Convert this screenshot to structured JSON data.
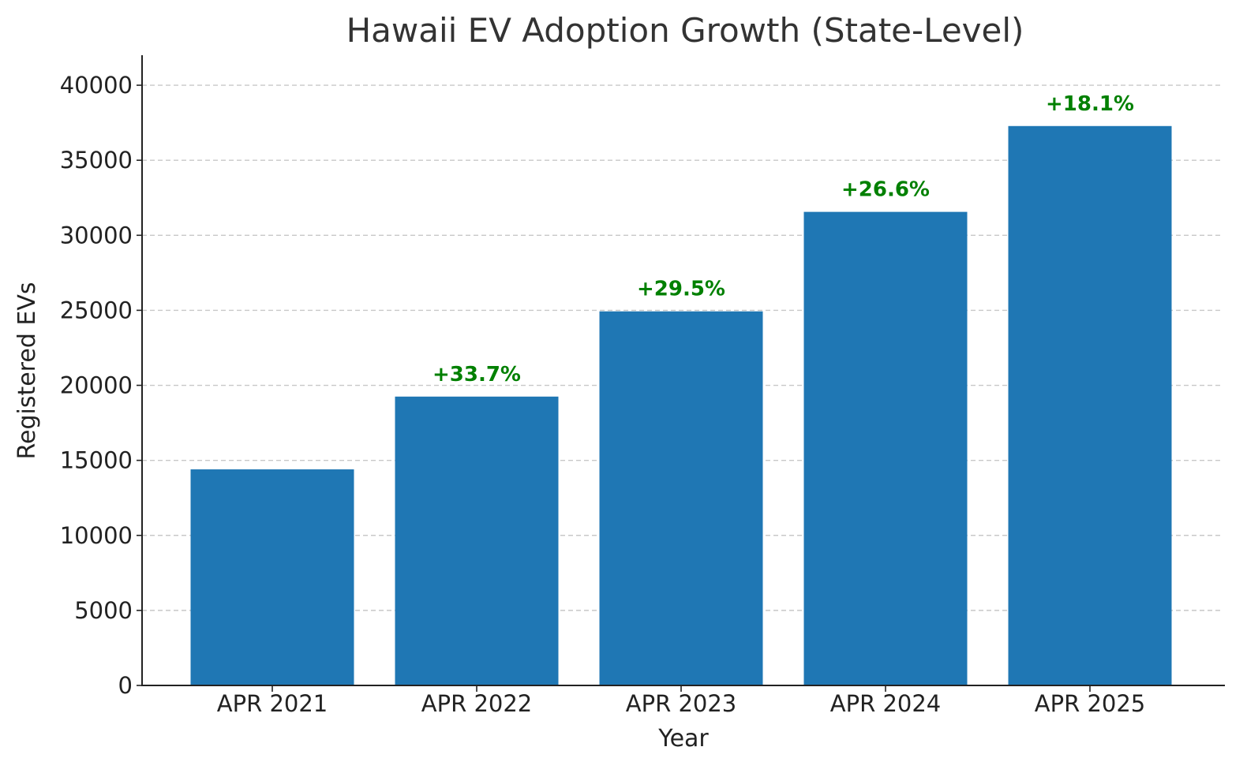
{
  "chart_data": {
    "type": "bar",
    "title": "Hawaii EV Adoption Growth (State-Level)",
    "xlabel": "Year",
    "ylabel": "Registered EVs",
    "categories": [
      "APR 2021",
      "APR 2022",
      "APR 2023",
      "APR 2024",
      "APR 2025"
    ],
    "values": [
      14400,
      19250,
      24930,
      31560,
      37280
    ],
    "growth_labels": [
      "",
      "+33.7%",
      "+29.5%",
      "+26.6%",
      "+18.1%"
    ],
    "ylim": [
      0,
      42000
    ],
    "yticks": [
      0,
      5000,
      10000,
      15000,
      20000,
      25000,
      30000,
      35000,
      40000
    ],
    "grid": "y, dashed",
    "bar_color": "#1f77b4",
    "label_color": "#008000"
  }
}
